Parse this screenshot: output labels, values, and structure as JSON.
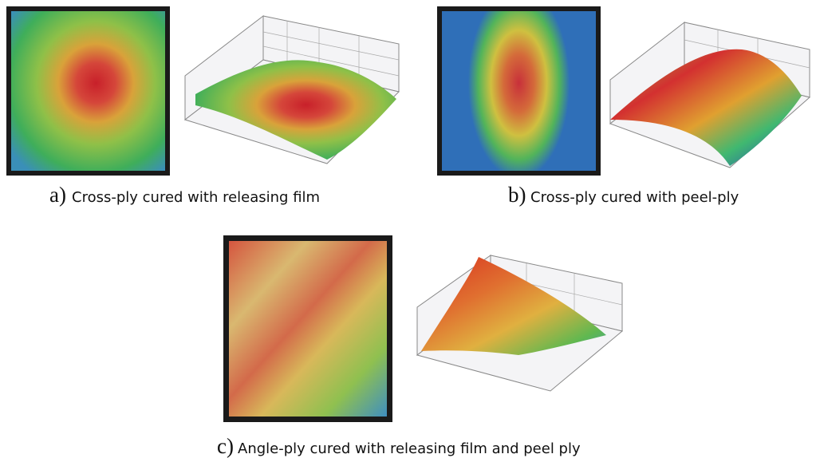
{
  "panels": [
    {
      "label": "a)",
      "caption": "Cross-ply cured with releasing film"
    },
    {
      "label": "b)",
      "caption": "Cross-ply cured with peel-ply"
    },
    {
      "label": "c)",
      "caption": "Angle-ply cured with releasing film and peel ply"
    }
  ]
}
